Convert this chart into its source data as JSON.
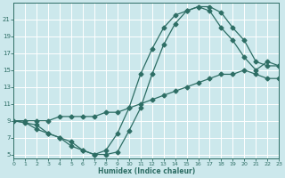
{
  "xlabel": "Humidex (Indice chaleur)",
  "bg_color": "#cce8ec",
  "grid_color": "#ffffff",
  "line_color": "#2e6e65",
  "curve1_x": [
    0,
    1,
    2,
    3,
    4,
    5,
    6,
    7,
    8,
    9,
    10,
    11,
    12,
    13,
    14,
    15,
    16,
    17,
    18,
    19,
    20,
    21,
    22,
    23
  ],
  "curve1_y": [
    9,
    8.8,
    8,
    7.5,
    7,
    6.5,
    5.5,
    5,
    5,
    5.3,
    7.8,
    10.5,
    14.5,
    18,
    20.5,
    22,
    22.5,
    22.5,
    21.8,
    20,
    18.5,
    16,
    15.5,
    15.5
  ],
  "curve2_x": [
    0,
    1,
    2,
    3,
    4,
    5,
    6,
    7,
    8,
    9,
    10,
    11,
    12,
    13,
    14,
    15,
    16,
    17,
    18,
    19,
    20,
    21,
    22,
    23
  ],
  "curve2_y": [
    9,
    9,
    9,
    9,
    9.5,
    9.5,
    9.5,
    9.5,
    10,
    10,
    10.5,
    11,
    11.5,
    12,
    12.5,
    13,
    13.5,
    14,
    14.5,
    14.5,
    15,
    14.5,
    14,
    14
  ],
  "curve3_x": [
    0,
    2,
    3,
    4,
    5,
    6,
    7,
    8,
    9,
    10,
    11,
    12,
    13,
    14,
    15,
    16,
    17,
    18,
    19,
    20,
    21,
    22,
    23
  ],
  "curve3_y": [
    9,
    8.5,
    7.5,
    7,
    6,
    5.5,
    5,
    5.5,
    7.5,
    10.5,
    14.5,
    17.5,
    20,
    21.5,
    22,
    22.5,
    22,
    20,
    18.5,
    16.5,
    15,
    16,
    15.5
  ],
  "xlim": [
    0,
    23
  ],
  "ylim": [
    4.5,
    23
  ],
  "yticks": [
    5,
    7,
    9,
    11,
    13,
    15,
    17,
    19,
    21
  ],
  "xticks": [
    0,
    1,
    2,
    3,
    4,
    5,
    6,
    7,
    8,
    9,
    10,
    11,
    12,
    13,
    14,
    15,
    16,
    17,
    18,
    19,
    20,
    21,
    22,
    23
  ],
  "marker": "D",
  "markersize": 2.5,
  "linewidth": 0.9
}
